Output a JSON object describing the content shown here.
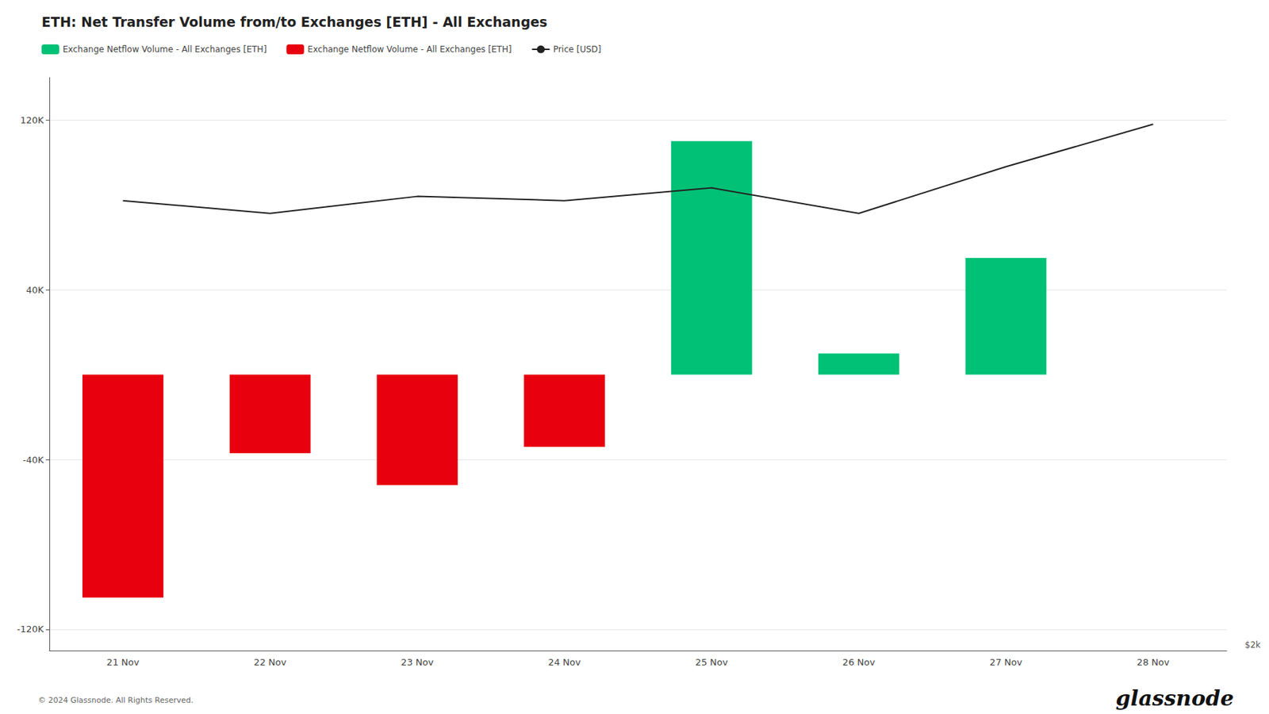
{
  "chart_data": {
    "type": "bar",
    "title": "ETH: Net Transfer Volume from/to Exchanges [ETH] - All Exchanges",
    "categories": [
      "21 Nov",
      "22 Nov",
      "23 Nov",
      "24 Nov",
      "25 Nov",
      "26 Nov",
      "27 Nov",
      "28 Nov"
    ],
    "series": [
      {
        "name": "Exchange Netflow Volume - All Exchanges [ETH]",
        "type": "bar",
        "color": "#00c176",
        "values": [
          null,
          null,
          null,
          null,
          110000,
          10000,
          55000,
          0
        ]
      },
      {
        "name": "Exchange Netflow Volume - All Exchanges [ETH]",
        "type": "bar",
        "color": "#e8000e",
        "values": [
          -105000,
          -37000,
          -52000,
          -34000,
          null,
          null,
          null,
          null
        ]
      },
      {
        "name": "Price [USD]",
        "type": "line",
        "color": "#222222",
        "values": [
          82000,
          76000,
          84000,
          82000,
          88000,
          76000,
          98000,
          118000
        ]
      }
    ],
    "ylim": [
      -130000,
      140000
    ],
    "yticks": [
      {
        "value": -120000,
        "label": "-120K"
      },
      {
        "value": -40000,
        "label": "-40K"
      },
      {
        "value": 40000,
        "label": "40K"
      },
      {
        "value": 120000,
        "label": "120K"
      }
    ],
    "grid": true,
    "legend": "top-left",
    "annotations": [
      "$2k",
      "© 2024 Glassnode. All Rights Reserved.",
      "glassnode"
    ]
  }
}
